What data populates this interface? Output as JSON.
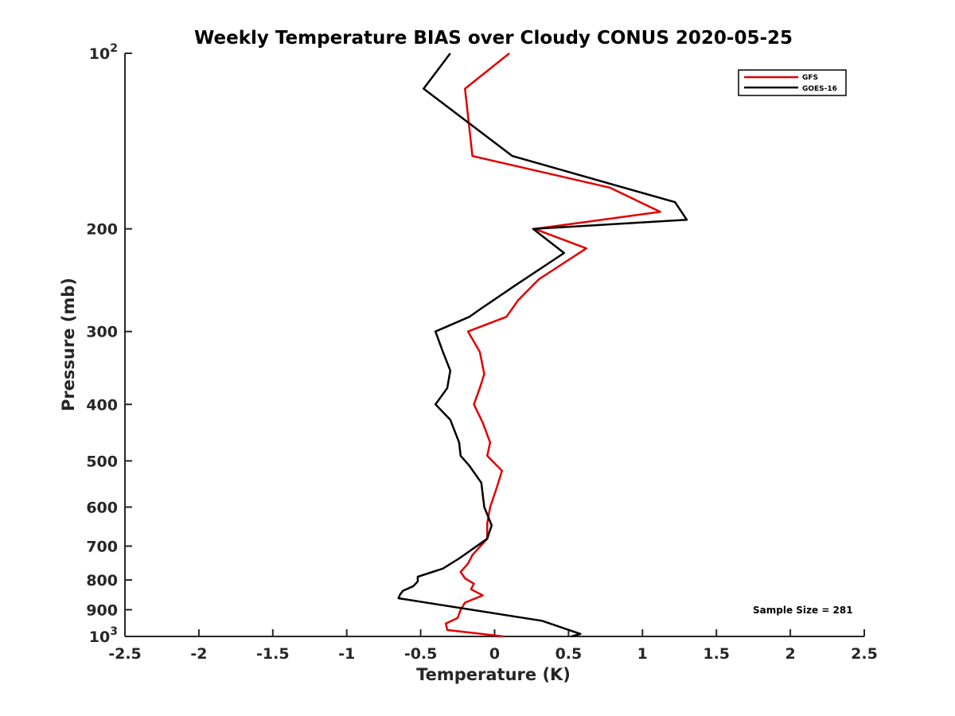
{
  "chart_data": {
    "type": "line",
    "title": "Weekly Temperature BIAS over Cloudy CONUS 2020-05-25",
    "xlabel": "Temperature (K)",
    "ylabel": "Pressure (mb)",
    "xlim": [
      -2.5,
      2.5
    ],
    "ylim": [
      100,
      1000
    ],
    "yscale": "log",
    "y_reversed": true,
    "grid": false,
    "legend_position": "top-right",
    "x_ticks": [
      "-2.5",
      "-2",
      "-1.5",
      "-1",
      "-0.5",
      "0",
      "0.5",
      "1",
      "1.5",
      "2",
      "2.5"
    ],
    "x_tick_values": [
      -2.5,
      -2,
      -1.5,
      -1,
      -0.5,
      0,
      0.5,
      1,
      1.5,
      2,
      2.5
    ],
    "y_ticks": [
      {
        "value": 100,
        "base": "10",
        "exp": "2"
      },
      {
        "value": 200,
        "label": "200"
      },
      {
        "value": 300,
        "label": "300"
      },
      {
        "value": 400,
        "label": "400"
      },
      {
        "value": 500,
        "label": "500"
      },
      {
        "value": 600,
        "label": "600"
      },
      {
        "value": 700,
        "label": "700"
      },
      {
        "value": 800,
        "label": "800"
      },
      {
        "value": 900,
        "label": "900"
      },
      {
        "value": 1000,
        "base": "10",
        "exp": "3"
      }
    ],
    "series": [
      {
        "name": "GFS",
        "color": "#e00000",
        "points": [
          [
            0.1,
            100
          ],
          [
            -0.2,
            115
          ],
          [
            -0.15,
            150
          ],
          [
            0.78,
            170
          ],
          [
            1.12,
            187
          ],
          [
            0.27,
            200
          ],
          [
            0.62,
            216
          ],
          [
            0.3,
            244
          ],
          [
            0.16,
            265
          ],
          [
            0.08,
            283
          ],
          [
            -0.18,
            300
          ],
          [
            -0.1,
            325
          ],
          [
            -0.07,
            355
          ],
          [
            -0.1,
            375
          ],
          [
            -0.14,
            400
          ],
          [
            -0.08,
            430
          ],
          [
            -0.03,
            465
          ],
          [
            -0.05,
            490
          ],
          [
            0.05,
            520
          ],
          [
            0.01,
            560
          ],
          [
            -0.03,
            600
          ],
          [
            -0.05,
            640
          ],
          [
            -0.05,
            680
          ],
          [
            -0.15,
            725
          ],
          [
            -0.18,
            750
          ],
          [
            -0.23,
            775
          ],
          [
            -0.2,
            795
          ],
          [
            -0.14,
            812
          ],
          [
            -0.16,
            830
          ],
          [
            -0.08,
            850
          ],
          [
            -0.2,
            875
          ],
          [
            -0.23,
            900
          ],
          [
            -0.25,
            930
          ],
          [
            -0.33,
            950
          ],
          [
            -0.32,
            975
          ],
          [
            0.06,
            1000
          ]
        ]
      },
      {
        "name": "GOES-16",
        "color": "#000000",
        "points": [
          [
            -0.3,
            100
          ],
          [
            -0.48,
            115
          ],
          [
            0.12,
            150
          ],
          [
            1.22,
            180
          ],
          [
            1.3,
            193
          ],
          [
            0.26,
            200
          ],
          [
            0.47,
            220
          ],
          [
            0.14,
            250
          ],
          [
            -0.1,
            275
          ],
          [
            -0.17,
            283
          ],
          [
            -0.4,
            300
          ],
          [
            -0.35,
            325
          ],
          [
            -0.3,
            350
          ],
          [
            -0.32,
            375
          ],
          [
            -0.4,
            400
          ],
          [
            -0.3,
            425
          ],
          [
            -0.24,
            465
          ],
          [
            -0.23,
            490
          ],
          [
            -0.17,
            510
          ],
          [
            -0.09,
            545
          ],
          [
            -0.07,
            600
          ],
          [
            -0.02,
            645
          ],
          [
            -0.05,
            680
          ],
          [
            -0.24,
            735
          ],
          [
            -0.35,
            765
          ],
          [
            -0.52,
            790
          ],
          [
            -0.52,
            805
          ],
          [
            -0.55,
            820
          ],
          [
            -0.62,
            835
          ],
          [
            -0.64,
            848
          ],
          [
            -0.65,
            860
          ],
          [
            -0.4,
            880
          ],
          [
            0.32,
            940
          ],
          [
            0.58,
            990
          ],
          [
            0.52,
            1000
          ]
        ]
      }
    ],
    "annotations": [
      {
        "text": "Sample Size = 281",
        "position": "bottom-right"
      }
    ]
  }
}
